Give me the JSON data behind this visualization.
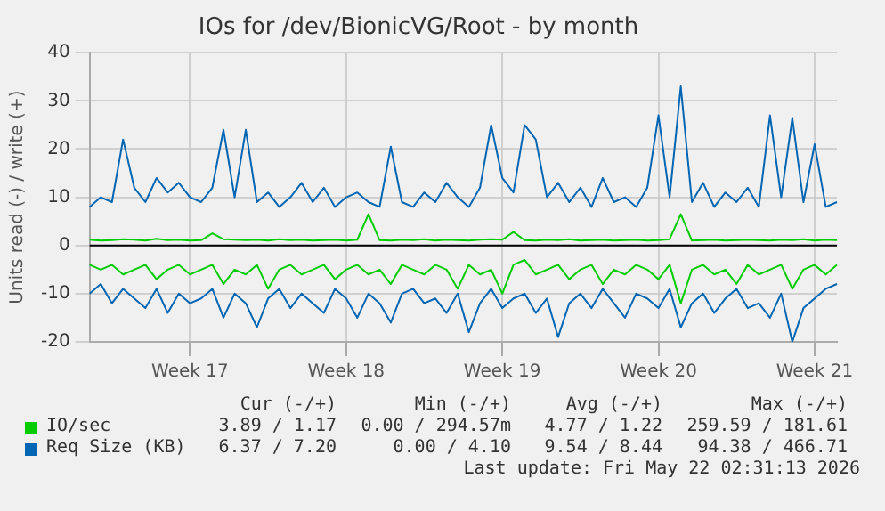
{
  "chart_data": {
    "type": "line",
    "title": "IOs for /dev/BionicVG/Root - by month",
    "ylabel": "Units read (-) / write (+)",
    "categories": [
      null,
      null,
      null,
      null,
      null,
      null,
      null,
      null,
      null,
      "Week 17",
      null,
      null,
      null,
      null,
      null,
      null,
      null,
      null,
      null,
      null,
      null,
      null,
      null,
      "Week 18",
      null,
      null,
      null,
      null,
      null,
      null,
      null,
      null,
      null,
      null,
      null,
      null,
      null,
      "Week 19",
      null,
      null,
      null,
      null,
      null,
      null,
      null,
      null,
      null,
      null,
      null,
      null,
      null,
      "Week 20",
      null,
      null,
      null,
      null,
      null,
      null,
      null,
      null,
      null,
      null,
      null,
      null,
      null,
      "Week 21",
      null,
      null
    ],
    "ylim": [
      -20,
      40
    ],
    "yticks": [
      -20,
      -10,
      0,
      10,
      20,
      30,
      40
    ],
    "grid": true,
    "legend": "bottom left",
    "ref_lines": [
      {
        "axis": "y",
        "value": 0,
        "color": "#000000"
      }
    ],
    "series": [
      {
        "name": "IO/sec",
        "color": "#00cc00",
        "values": [
          1.2,
          1.0,
          1.1,
          1.3,
          1.2,
          1.0,
          1.4,
          1.1,
          1.2,
          1.0,
          1.1,
          2.5,
          1.3,
          1.2,
          1.1,
          1.2,
          1.0,
          1.3,
          1.1,
          1.2,
          1.0,
          1.1,
          1.2,
          1.0,
          1.2,
          6.5,
          1.1,
          1.0,
          1.2,
          1.1,
          1.3,
          1.0,
          1.2,
          1.1,
          1.0,
          1.2,
          1.3,
          1.2,
          2.8,
          1.1,
          1.0,
          1.2,
          1.1,
          1.3,
          1.0,
          1.1,
          1.2,
          1.0,
          1.1,
          1.2,
          1.0,
          1.1,
          1.3,
          6.5,
          1.0,
          1.1,
          1.2,
          1.0,
          1.1,
          1.2,
          1.1,
          1.0,
          1.2,
          1.1,
          1.3,
          1.0,
          1.2,
          1.1
        ]
      },
      {
        "color": "#00cc00",
        "values": [
          -4,
          -5,
          -4,
          -6,
          -5,
          -4,
          -7,
          -5,
          -4,
          -6,
          -5,
          -4,
          -8,
          -5,
          -6,
          -4,
          -9,
          -5,
          -4,
          -6,
          -5,
          -4,
          -7,
          -5,
          -4,
          -6,
          -5,
          -8,
          -4,
          -5,
          -6,
          -4,
          -5,
          -9,
          -4,
          -6,
          -5,
          -10,
          -4,
          -3,
          -6,
          -5,
          -4,
          -7,
          -5,
          -4,
          -8,
          -5,
          -6,
          -4,
          -5,
          -7,
          -4,
          -12,
          -5,
          -4,
          -6,
          -5,
          -8,
          -4,
          -6,
          -5,
          -4,
          -9,
          -5,
          -4,
          -6,
          -4
        ]
      },
      {
        "name": "Req Size (KB)",
        "color": "#0066b3",
        "values": [
          8,
          10,
          9,
          22,
          12,
          9,
          14,
          11,
          13,
          10,
          9,
          12,
          24,
          10,
          24,
          9,
          11,
          8,
          10,
          13,
          9,
          12,
          8,
          10,
          11,
          9,
          8,
          20.5,
          9,
          8,
          11,
          9,
          13,
          10,
          8,
          12,
          25,
          14,
          11,
          25,
          22,
          10,
          13,
          9,
          12,
          8,
          14,
          9,
          10,
          8,
          12,
          27,
          10,
          33,
          9,
          13,
          8,
          11,
          9,
          12,
          8,
          27,
          10,
          26.5,
          9,
          21,
          8,
          9
        ]
      },
      {
        "color": "#0066b3",
        "values": [
          -10,
          -8,
          -12,
          -9,
          -11,
          -13,
          -9,
          -14,
          -10,
          -12,
          -11,
          -9,
          -15,
          -10,
          -12,
          -17,
          -11,
          -9,
          -13,
          -10,
          -12,
          -14,
          -9,
          -11,
          -15,
          -10,
          -12,
          -16,
          -10,
          -9,
          -12,
          -11,
          -14,
          -10,
          -18,
          -12,
          -9,
          -13,
          -11,
          -10,
          -14,
          -11,
          -19,
          -12,
          -10,
          -13,
          -9,
          -12,
          -15,
          -10,
          -11,
          -13,
          -9,
          -17,
          -12,
          -10,
          -14,
          -11,
          -9,
          -13,
          -12,
          -15,
          -10,
          -20,
          -13,
          -11,
          -9,
          -8
        ]
      }
    ],
    "annotations": [
      "Cur (-/+)",
      "Min (-/+)",
      "Avg (-/+)",
      "Max (-/+)",
      "3.89 / 1.17",
      "0.00 / 294.57m",
      "4.77 / 1.22",
      "259.59 / 181.61",
      "6.37 / 7.20",
      "0.00 / 4.10",
      "9.54 / 8.44",
      "94.38 / 466.71",
      "Last update: Fri May 22 02:31:13 2026"
    ]
  }
}
